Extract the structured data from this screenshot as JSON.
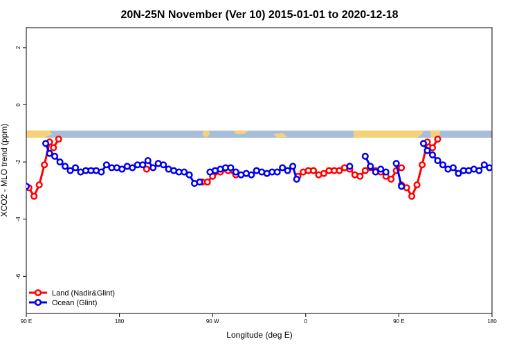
{
  "chart_data": {
    "type": "line",
    "title": "20N-25N November (Ver 10)   2015-01-01 to 2020-12-18",
    "xlabel": "Longitude (deg E)",
    "ylabel": "XCO2 - MLO trend (ppm)",
    "xlim": [
      90,
      450
    ],
    "ylim": [
      -7.3,
      2.7
    ],
    "x_ticks": [
      90,
      162,
      234,
      306,
      378,
      450
    ],
    "x_tick_labels": [
      "90 E",
      "180",
      "90 W",
      "0",
      "90 E",
      "180"
    ],
    "y_ticks": [
      2,
      0,
      -2,
      -4,
      -6
    ],
    "y_tick_labels": [
      "2",
      "0",
      "-2",
      "-4",
      "-6"
    ],
    "legend_position": "bottom-left",
    "land_band": {
      "y_top": -0.9,
      "y_bottom": -1.15,
      "ocean_color": "#a8bdd8",
      "land_color": "#f5d27a"
    },
    "series": [
      {
        "name": "Land (Nadir&Glint)",
        "color": "#ff0000",
        "segments": [
          [
            [
              92,
              -2.9
            ],
            [
              96,
              -3.2
            ],
            [
              100,
              -2.8
            ],
            [
              104,
              -2.1
            ],
            [
              108,
              -1.3
            ],
            [
              111,
              -1.5
            ],
            [
              115,
              -1.2
            ]
          ],
          [
            [
              183,
              -2.25
            ]
          ],
          [
            [
              226,
              -2.7
            ],
            [
              230,
              -2.7
            ],
            [
              234,
              -2.5
            ],
            [
              240,
              -2.35
            ],
            [
              246,
              -2.3
            ],
            [
              252,
              -2.45
            ]
          ],
          [
            [
              300,
              -2.5
            ],
            [
              304,
              -2.35
            ],
            [
              308,
              -2.3
            ],
            [
              312,
              -2.3
            ],
            [
              316,
              -2.45
            ],
            [
              320,
              -2.4
            ],
            [
              324,
              -2.3
            ],
            [
              328,
              -2.3
            ],
            [
              332,
              -2.3
            ],
            [
              336,
              -2.2
            ],
            [
              340,
              -2.25
            ],
            [
              344,
              -2.45
            ],
            [
              348,
              -2.5
            ],
            [
              352,
              -2.3
            ],
            [
              356,
              -2.2
            ],
            [
              360,
              -2.3
            ],
            [
              364,
              -2.35
            ],
            [
              368,
              -2.5
            ],
            [
              372,
              -2.6
            ],
            [
              376,
              -2.3
            ],
            [
              380,
              -2.2
            ]
          ],
          [
            [
              380,
              -2.8
            ],
            [
              384,
              -2.9
            ],
            [
              388,
              -3.2
            ],
            [
              392,
              -2.8
            ],
            [
              396,
              -2.1
            ],
            [
              400,
              -1.3
            ],
            [
              404,
              -1.5
            ],
            [
              408,
              -1.2
            ]
          ]
        ]
      },
      {
        "name": "Ocean (Glint)",
        "color": "#0000ee",
        "segments": [
          [
            [
              90,
              -2.85
            ]
          ],
          [
            [
              105,
              -1.35
            ],
            [
              108,
              -1.7
            ],
            [
              112,
              -1.8
            ],
            [
              116,
              -2.0
            ],
            [
              120,
              -2.15
            ],
            [
              124,
              -2.3
            ],
            [
              128,
              -2.2
            ],
            [
              132,
              -2.35
            ],
            [
              136,
              -2.3
            ],
            [
              140,
              -2.3
            ],
            [
              144,
              -2.3
            ],
            [
              148,
              -2.35
            ],
            [
              152,
              -2.1
            ],
            [
              156,
              -2.2
            ],
            [
              160,
              -2.2
            ],
            [
              164,
              -2.25
            ],
            [
              168,
              -2.15
            ],
            [
              172,
              -2.2
            ],
            [
              176,
              -2.1
            ],
            [
              180,
              -2.1
            ],
            [
              184,
              -1.95
            ],
            [
              188,
              -2.2
            ],
            [
              192,
              -2.05
            ],
            [
              196,
              -2.1
            ],
            [
              200,
              -2.25
            ],
            [
              204,
              -2.3
            ],
            [
              208,
              -2.35
            ],
            [
              212,
              -2.35
            ],
            [
              216,
              -2.45
            ],
            [
              220,
              -2.75
            ],
            [
              224,
              -2.7
            ]
          ],
          [
            [
              232,
              -2.35
            ],
            [
              236,
              -2.3
            ],
            [
              240,
              -2.25
            ],
            [
              244,
              -2.2
            ],
            [
              248,
              -2.2
            ],
            [
              252,
              -2.35
            ],
            [
              256,
              -2.45
            ],
            [
              260,
              -2.4
            ],
            [
              264,
              -2.45
            ],
            [
              268,
              -2.3
            ],
            [
              272,
              -2.35
            ],
            [
              276,
              -2.4
            ],
            [
              280,
              -2.35
            ],
            [
              284,
              -2.35
            ],
            [
              288,
              -2.2
            ],
            [
              292,
              -2.3
            ],
            [
              296,
              -2.15
            ],
            [
              299,
              -2.6
            ]
          ],
          [
            [
              340,
              -2.15
            ]
          ],
          [
            [
              352,
              -1.8
            ],
            [
              356,
              -2.15
            ],
            [
              360,
              -2.35
            ],
            [
              364,
              -2.25
            ],
            [
              368,
              -2.35
            ]
          ],
          [
            [
              376,
              -2.05
            ],
            [
              380,
              -2.85
            ]
          ],
          [
            [
              397,
              -1.35
            ],
            [
              400,
              -1.6
            ],
            [
              404,
              -1.75
            ],
            [
              408,
              -1.95
            ],
            [
              412,
              -2.1
            ],
            [
              416,
              -2.25
            ],
            [
              420,
              -2.2
            ],
            [
              424,
              -2.4
            ],
            [
              428,
              -2.3
            ],
            [
              432,
              -2.3
            ],
            [
              436,
              -2.25
            ],
            [
              440,
              -2.3
            ],
            [
              444,
              -2.1
            ],
            [
              448,
              -2.2
            ],
            [
              452,
              -2.2
            ]
          ]
        ]
      }
    ]
  }
}
